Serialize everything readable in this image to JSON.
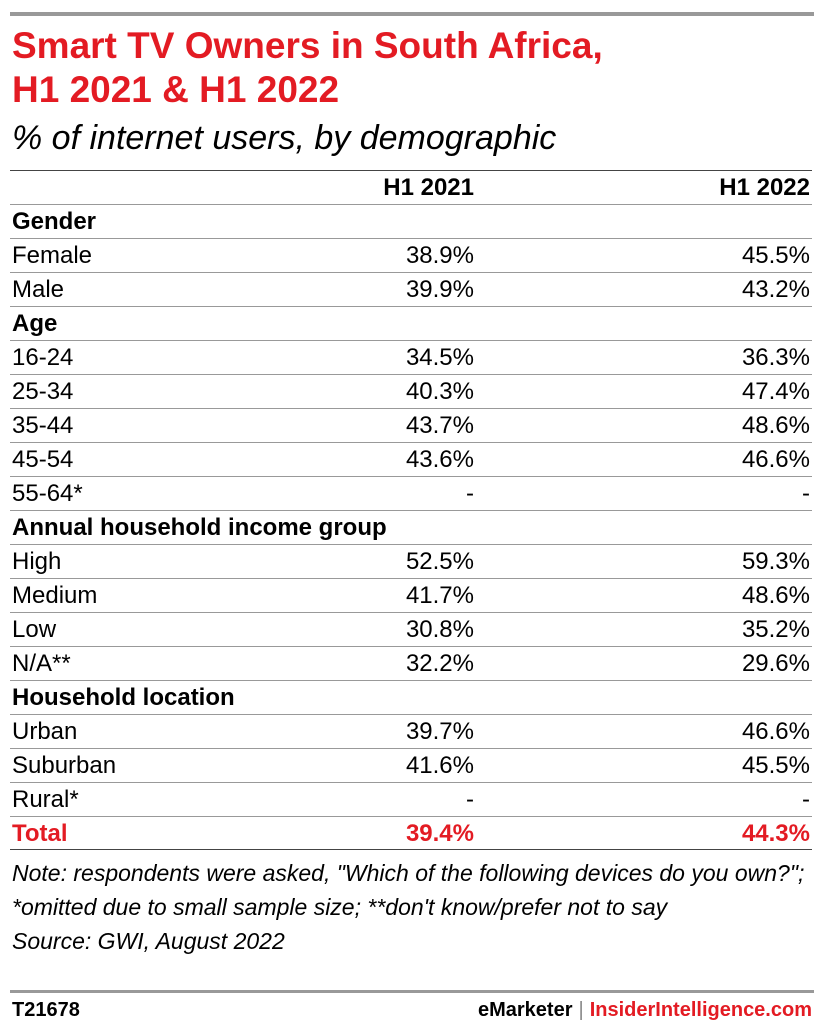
{
  "title_line1": "Smart TV Owners in South Africa,",
  "title_line2": "H1 2021 & H1 2022",
  "subtitle": "% of internet users, by demographic",
  "columns": [
    "",
    "H1 2021",
    "H1 2022"
  ],
  "rows": [
    {
      "label": "Gender",
      "group": true,
      "a": "",
      "b": ""
    },
    {
      "label": "Female",
      "a": "38.9%",
      "b": "45.5%"
    },
    {
      "label": "Male",
      "a": "39.9%",
      "b": "43.2%"
    },
    {
      "label": "Age",
      "group": true,
      "a": "",
      "b": ""
    },
    {
      "label": "16-24",
      "a": "34.5%",
      "b": "36.3%"
    },
    {
      "label": "25-34",
      "a": "40.3%",
      "b": "47.4%"
    },
    {
      "label": "35-44",
      "a": "43.7%",
      "b": "48.6%"
    },
    {
      "label": "45-54",
      "a": "43.6%",
      "b": "46.6%"
    },
    {
      "label": "55-64*",
      "a": "-",
      "b": "-"
    },
    {
      "label": "Annual household income group",
      "group": true,
      "a": "",
      "b": ""
    },
    {
      "label": "High",
      "a": "52.5%",
      "b": "59.3%"
    },
    {
      "label": "Medium",
      "a": "41.7%",
      "b": "48.6%"
    },
    {
      "label": "Low",
      "a": "30.8%",
      "b": "35.2%"
    },
    {
      "label": "N/A**",
      "a": "32.2%",
      "b": "29.6%"
    },
    {
      "label": "Household location",
      "group": true,
      "a": "",
      "b": ""
    },
    {
      "label": "Urban",
      "a": "39.7%",
      "b": "46.6%"
    },
    {
      "label": "Suburban",
      "a": "41.6%",
      "b": "45.5%"
    },
    {
      "label": "Rural*",
      "a": "-",
      "b": "-"
    },
    {
      "label": "Total",
      "total": true,
      "a": "39.4%",
      "b": "44.3%"
    }
  ],
  "note": "Note: respondents were asked, \"Which of the following devices do you own?\"; *omitted due to small sample size; **don't know/prefer not to say",
  "source": "Source: GWI, August 2022",
  "footer_id": "T21678",
  "brand_emarketer": "eMarketer",
  "brand_separator": "|",
  "brand_insider": "InsiderIntelligence.com",
  "colors": {
    "accent": "#e31b23",
    "rule": "#999999"
  },
  "chart_data": {
    "type": "table",
    "title": "Smart TV Owners in South Africa, H1 2021 & H1 2022",
    "subtitle": "% of internet users, by demographic",
    "columns": [
      "H1 2021",
      "H1 2022"
    ],
    "groups": [
      {
        "name": "Gender",
        "rows": [
          [
            "Female",
            38.9,
            45.5
          ],
          [
            "Male",
            39.9,
            43.2
          ]
        ]
      },
      {
        "name": "Age",
        "rows": [
          [
            "16-24",
            34.5,
            36.3
          ],
          [
            "25-34",
            40.3,
            47.4
          ],
          [
            "35-44",
            43.7,
            48.6
          ],
          [
            "45-54",
            43.6,
            46.6
          ],
          [
            "55-64*",
            null,
            null
          ]
        ]
      },
      {
        "name": "Annual household income group",
        "rows": [
          [
            "High",
            52.5,
            59.3
          ],
          [
            "Medium",
            41.7,
            48.6
          ],
          [
            "Low",
            30.8,
            35.2
          ],
          [
            "N/A**",
            32.2,
            29.6
          ]
        ]
      },
      {
        "name": "Household location",
        "rows": [
          [
            "Urban",
            39.7,
            46.6
          ],
          [
            "Suburban",
            41.6,
            45.5
          ],
          [
            "Rural*",
            null,
            null
          ]
        ]
      }
    ],
    "total": [
      "Total",
      39.4,
      44.3
    ]
  }
}
